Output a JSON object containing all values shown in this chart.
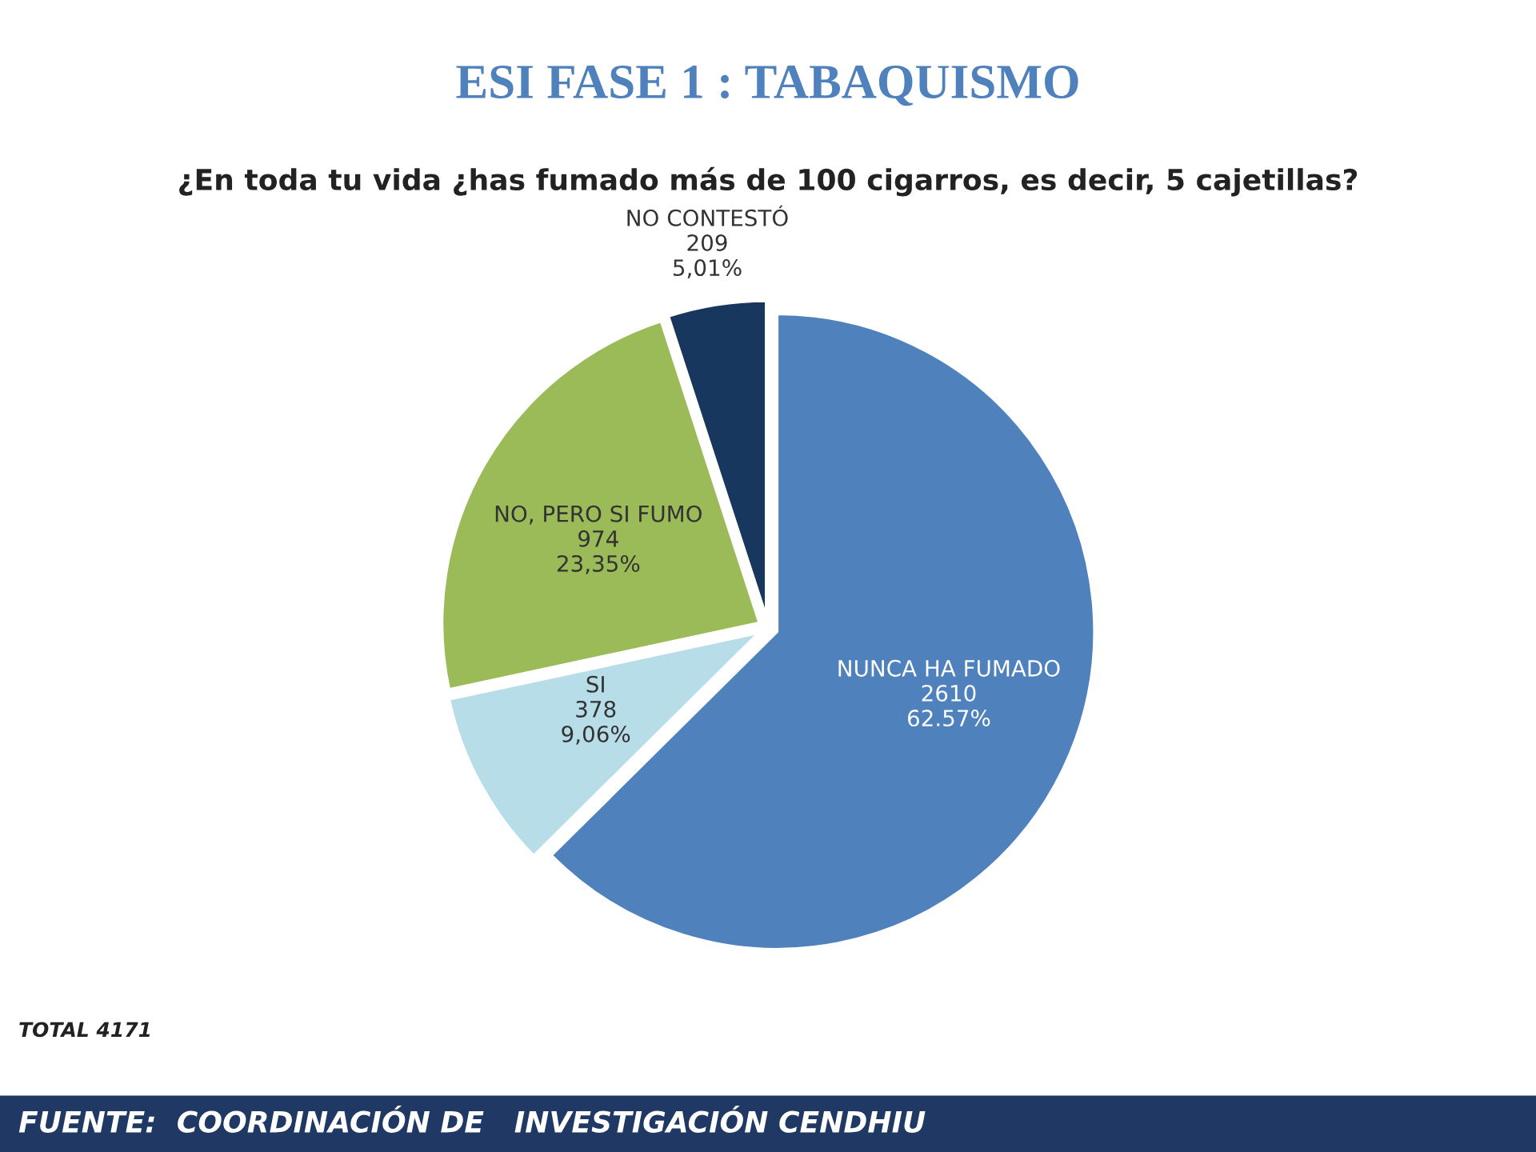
{
  "chart_data": {
    "type": "pie",
    "title": "ESI FASE 1 : TABAQUISMO",
    "subtitle": "¿En toda tu vida ¿has fumado más de 100 cigarros, es decir, 5 cajetillas?",
    "categories": [
      "NUNCA HA FUMADO",
      "SI",
      "NO, PERO SI FUMO",
      "NO CONTESTÓ"
    ],
    "values": [
      2610,
      378,
      974,
      209
    ],
    "value_labels": [
      "2610\n62.57%",
      "378\n9,06%",
      "974\n23,35%",
      "209\n5,01%"
    ],
    "colors": [
      "#4f81bd",
      "#b7dde8",
      "#9bbb59",
      "#17375e"
    ],
    "annotations": [
      "TOTAL 4171",
      "FUENTE:  COORDINACIÓN DE   INVESTIGACIÓN CENDHIU"
    ]
  }
}
